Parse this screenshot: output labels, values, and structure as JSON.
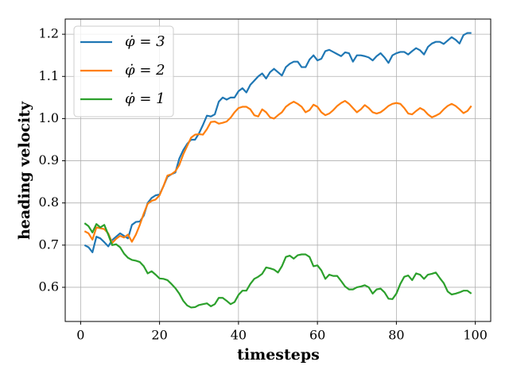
{
  "chart_data": {
    "type": "line",
    "x_label": "timesteps",
    "y_label": "heading velocity",
    "x": [
      1,
      2,
      3,
      4,
      5,
      6,
      7,
      8,
      9,
      10,
      11,
      12,
      13,
      14,
      15,
      16,
      17,
      18,
      19,
      20,
      21,
      22,
      23,
      24,
      25,
      26,
      27,
      28,
      29,
      30,
      31,
      32,
      33,
      34,
      35,
      36,
      37,
      38,
      39,
      40,
      41,
      42,
      43,
      44,
      45,
      46,
      47,
      48,
      49,
      50,
      51,
      52,
      53,
      54,
      55,
      56,
      57,
      58,
      59,
      60,
      61,
      62,
      63,
      64,
      65,
      66,
      67,
      68,
      69,
      70,
      71,
      72,
      73,
      74,
      75,
      76,
      77,
      78,
      79,
      80,
      81,
      82,
      83,
      84,
      85,
      86,
      87,
      88,
      89,
      90,
      91,
      92,
      93,
      94,
      95,
      96,
      97,
      98,
      99
    ],
    "series": [
      {
        "name": "φ̇ = 3",
        "color": "#1f77b4",
        "values": [
          0.7,
          0.695,
          0.683,
          0.72,
          0.716,
          0.707,
          0.697,
          0.712,
          0.72,
          0.728,
          0.722,
          0.716,
          0.748,
          0.755,
          0.756,
          0.77,
          0.8,
          0.812,
          0.818,
          0.82,
          0.84,
          0.862,
          0.868,
          0.872,
          0.905,
          0.925,
          0.94,
          0.95,
          0.95,
          0.965,
          0.985,
          1.007,
          1.005,
          1.01,
          1.04,
          1.05,
          1.045,
          1.05,
          1.05,
          1.065,
          1.072,
          1.062,
          1.08,
          1.09,
          1.1,
          1.107,
          1.095,
          1.11,
          1.118,
          1.11,
          1.102,
          1.122,
          1.13,
          1.135,
          1.135,
          1.122,
          1.122,
          1.14,
          1.15,
          1.138,
          1.142,
          1.16,
          1.163,
          1.158,
          1.153,
          1.148,
          1.157,
          1.155,
          1.135,
          1.15,
          1.15,
          1.148,
          1.145,
          1.138,
          1.148,
          1.155,
          1.145,
          1.132,
          1.15,
          1.155,
          1.158,
          1.158,
          1.152,
          1.16,
          1.167,
          1.162,
          1.152,
          1.17,
          1.178,
          1.182,
          1.182,
          1.177,
          1.185,
          1.193,
          1.187,
          1.178,
          1.198,
          1.203,
          1.203
        ]
      },
      {
        "name": "φ̇ = 2",
        "color": "#ff7f0e",
        "values": [
          0.733,
          0.728,
          0.713,
          0.742,
          0.74,
          0.738,
          0.728,
          0.705,
          0.715,
          0.722,
          0.718,
          0.725,
          0.708,
          0.725,
          0.748,
          0.775,
          0.798,
          0.805,
          0.808,
          0.818,
          0.84,
          0.865,
          0.868,
          0.875,
          0.89,
          0.915,
          0.935,
          0.955,
          0.962,
          0.963,
          0.962,
          0.975,
          0.992,
          0.993,
          0.988,
          0.99,
          0.993,
          1.002,
          1.015,
          1.025,
          1.028,
          1.028,
          1.022,
          1.008,
          1.005,
          1.022,
          1.015,
          1.003,
          1.0,
          1.008,
          1.015,
          1.028,
          1.035,
          1.04,
          1.035,
          1.028,
          1.015,
          1.02,
          1.033,
          1.028,
          1.015,
          1.008,
          1.012,
          1.02,
          1.03,
          1.037,
          1.042,
          1.035,
          1.025,
          1.015,
          1.022,
          1.032,
          1.025,
          1.015,
          1.012,
          1.015,
          1.022,
          1.03,
          1.035,
          1.037,
          1.035,
          1.025,
          1.012,
          1.01,
          1.018,
          1.025,
          1.02,
          1.01,
          1.003,
          1.007,
          1.012,
          1.022,
          1.03,
          1.035,
          1.03,
          1.022,
          1.013,
          1.018,
          1.03
        ]
      },
      {
        "name": "φ̇ = 1",
        "color": "#2ca02c",
        "values": [
          0.752,
          0.745,
          0.73,
          0.75,
          0.742,
          0.748,
          0.725,
          0.7,
          0.702,
          0.695,
          0.68,
          0.67,
          0.665,
          0.663,
          0.66,
          0.65,
          0.633,
          0.638,
          0.63,
          0.621,
          0.62,
          0.617,
          0.608,
          0.598,
          0.585,
          0.568,
          0.557,
          0.552,
          0.553,
          0.558,
          0.56,
          0.562,
          0.555,
          0.56,
          0.575,
          0.575,
          0.568,
          0.56,
          0.565,
          0.582,
          0.592,
          0.592,
          0.608,
          0.62,
          0.625,
          0.632,
          0.647,
          0.645,
          0.642,
          0.635,
          0.65,
          0.672,
          0.675,
          0.668,
          0.676,
          0.678,
          0.678,
          0.672,
          0.65,
          0.652,
          0.64,
          0.62,
          0.63,
          0.627,
          0.627,
          0.615,
          0.602,
          0.595,
          0.595,
          0.6,
          0.602,
          0.605,
          0.6,
          0.585,
          0.595,
          0.597,
          0.588,
          0.573,
          0.572,
          0.585,
          0.608,
          0.625,
          0.628,
          0.617,
          0.633,
          0.63,
          0.62,
          0.63,
          0.632,
          0.635,
          0.622,
          0.61,
          0.59,
          0.583,
          0.585,
          0.588,
          0.592,
          0.592,
          0.585
        ]
      }
    ],
    "xlim": [
      -3.9,
      103.9
    ],
    "ylim": [
      0.519,
      1.236
    ],
    "xticks": [
      0,
      20,
      40,
      60,
      80,
      100
    ],
    "yticks": [
      0.6,
      0.7,
      0.8,
      0.9,
      {
        "value": 1,
        "label": "1.0"
      },
      1.1,
      1.2
    ],
    "grid": true,
    "legend": "upper left"
  }
}
